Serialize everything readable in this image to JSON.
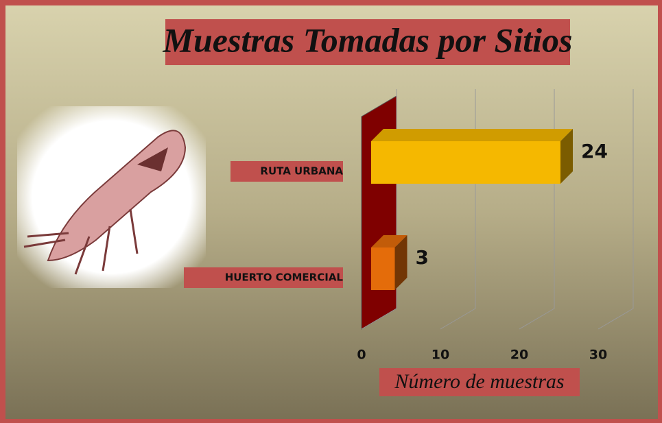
{
  "chart_data": {
    "type": "bar",
    "orientation": "horizontal",
    "title": "Muestras Tomadas por Sitios",
    "xlabel": "Número de muestras",
    "categories": [
      "HUERTO COMERCIAL",
      "RUTA URBANA"
    ],
    "values": [
      3,
      24
    ],
    "colors": [
      "#e46c0a",
      "#f5b800"
    ],
    "xlim": [
      0,
      30
    ],
    "xticks": [
      0,
      10,
      20,
      30
    ],
    "grid": true
  }
}
